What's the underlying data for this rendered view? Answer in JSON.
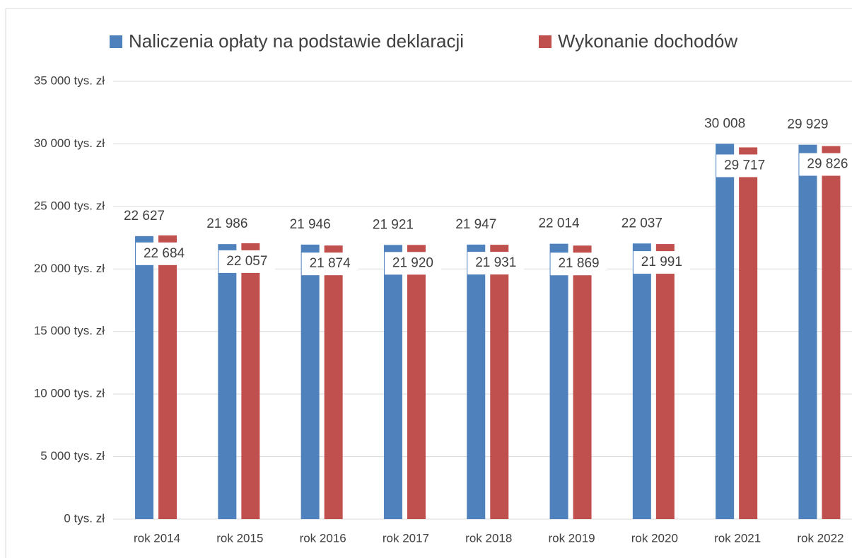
{
  "chart_data": {
    "type": "bar",
    "categories": [
      "rok 2014",
      "rok 2015",
      "rok 2016",
      "rok 2017",
      "rok 2018",
      "rok 2019",
      "rok 2020",
      "rok 2021",
      "rok 2022"
    ],
    "series": [
      {
        "name": "Naliczenia opłaty na podstawie deklaracji",
        "color": "#4f81bd",
        "values": [
          22627,
          21986,
          21946,
          21921,
          21947,
          22014,
          22037,
          30008,
          29929
        ],
        "value_labels": [
          "22 627",
          "21 986",
          "21 946",
          "21 921",
          "21 947",
          "22 014",
          "22 037",
          "30 008",
          "29 929"
        ]
      },
      {
        "name": "Wykonanie dochodów",
        "color": "#c0504d",
        "values": [
          22684,
          22057,
          21874,
          21920,
          21931,
          21869,
          21991,
          29717,
          29826
        ],
        "value_labels": [
          "22 684",
          "22 057",
          "21 874",
          "21 920",
          "21 931",
          "21 869",
          "21 991",
          "29 717",
          "29 826"
        ]
      }
    ],
    "ylim": [
      0,
      35000
    ],
    "yticks": [
      {
        "value": 0,
        "label": "0 tys. zł"
      },
      {
        "value": 5000,
        "label": "5 000 tys. zł"
      },
      {
        "value": 10000,
        "label": "10 000 tys. zł"
      },
      {
        "value": 15000,
        "label": "15 000 tys. zł"
      },
      {
        "value": 20000,
        "label": "20 000 tys. zł"
      },
      {
        "value": 25000,
        "label": "25 000 tys. zł"
      },
      {
        "value": 30000,
        "label": "30 000 tys. zł"
      },
      {
        "value": 35000,
        "label": "35 000 tys. zł"
      }
    ],
    "grid": true,
    "legend": "top"
  }
}
